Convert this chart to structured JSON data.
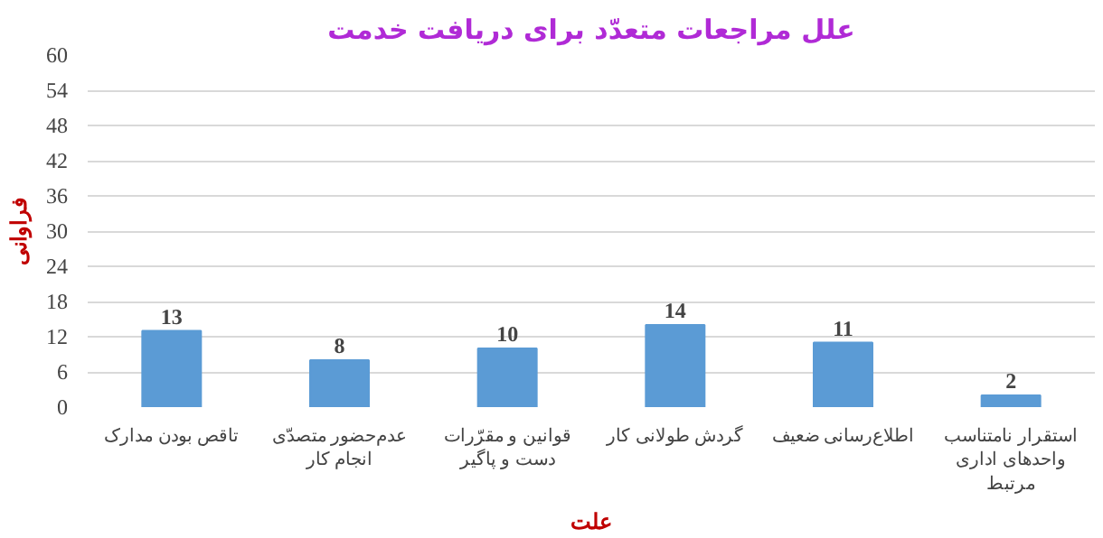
{
  "chart_data": {
    "type": "bar",
    "title": "علل مراجعات متعدّد برای دریافت خدمت",
    "xlabel": "علت",
    "ylabel": "فراوانی",
    "categories": [
      "تاقص بودن مدارک",
      "عدم‌حضور متصدّی\nانجام کار",
      "قوانین و مقرّرات\nدست و پاگیر",
      "گردش طولانی کار",
      "اطلاع‌رسانی ضعیف",
      "استقرار نامتناسب\nواحدهای اداری\nمرتبط"
    ],
    "values": [
      13,
      8,
      10,
      14,
      11,
      2
    ],
    "color": "#5b9bd5",
    "ylim": [
      0,
      60
    ],
    "yticks": [
      0,
      6,
      12,
      18,
      24,
      30,
      36,
      42,
      48,
      54,
      60
    ],
    "grid": "y",
    "data_labels": true
  }
}
